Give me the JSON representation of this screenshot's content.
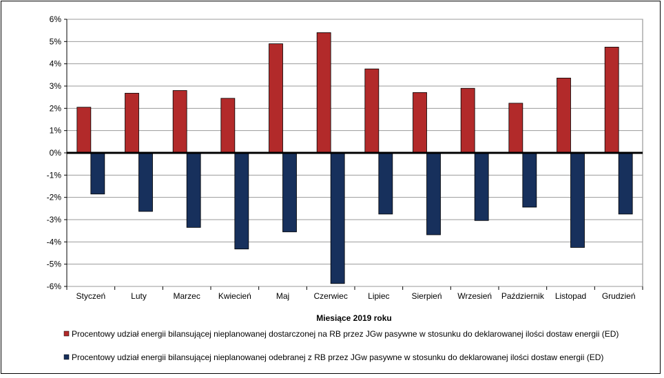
{
  "chart_data": {
    "type": "bar",
    "categories": [
      "Styczeń",
      "Luty",
      "Marzec",
      "Kwiecień",
      "Maj",
      "Czerwiec",
      "Lipiec",
      "Sierpień",
      "Wrzesień",
      "Październik",
      "Listopad",
      "Grudzień"
    ],
    "series": [
      {
        "name": "Procentowy udział energii bilansującej nieplanowanej dostarczonej na RB przez JGw pasywne w stosunku do deklarowanej ilości dostaw energii (ED)",
        "color": "#b22a2a",
        "values": [
          2.05,
          2.68,
          2.8,
          2.45,
          4.9,
          5.4,
          3.77,
          2.71,
          2.9,
          2.23,
          3.36,
          4.75
        ]
      },
      {
        "name": "Procentowy udział energii bilansującej nieplanowanej odebranej z RB przez JGw pasywne w stosunku do deklarowanej ilości dostaw energii (ED)",
        "color": "#17305c",
        "values": [
          -1.85,
          -2.63,
          -3.35,
          -4.32,
          -3.55,
          -5.87,
          -2.75,
          -3.68,
          -3.04,
          -2.44,
          -4.25,
          -2.75
        ]
      }
    ],
    "xlabel": "Miesiące 2019  roku",
    "ylabel": "",
    "ylim": [
      -6,
      6
    ],
    "yticks": [
      "-6%",
      "-5%",
      "-4%",
      "-3%",
      "-2%",
      "-1%",
      "0%",
      "1%",
      "2%",
      "3%",
      "4%",
      "5%",
      "6%"
    ],
    "grid": true,
    "legend_position": "bottom"
  }
}
